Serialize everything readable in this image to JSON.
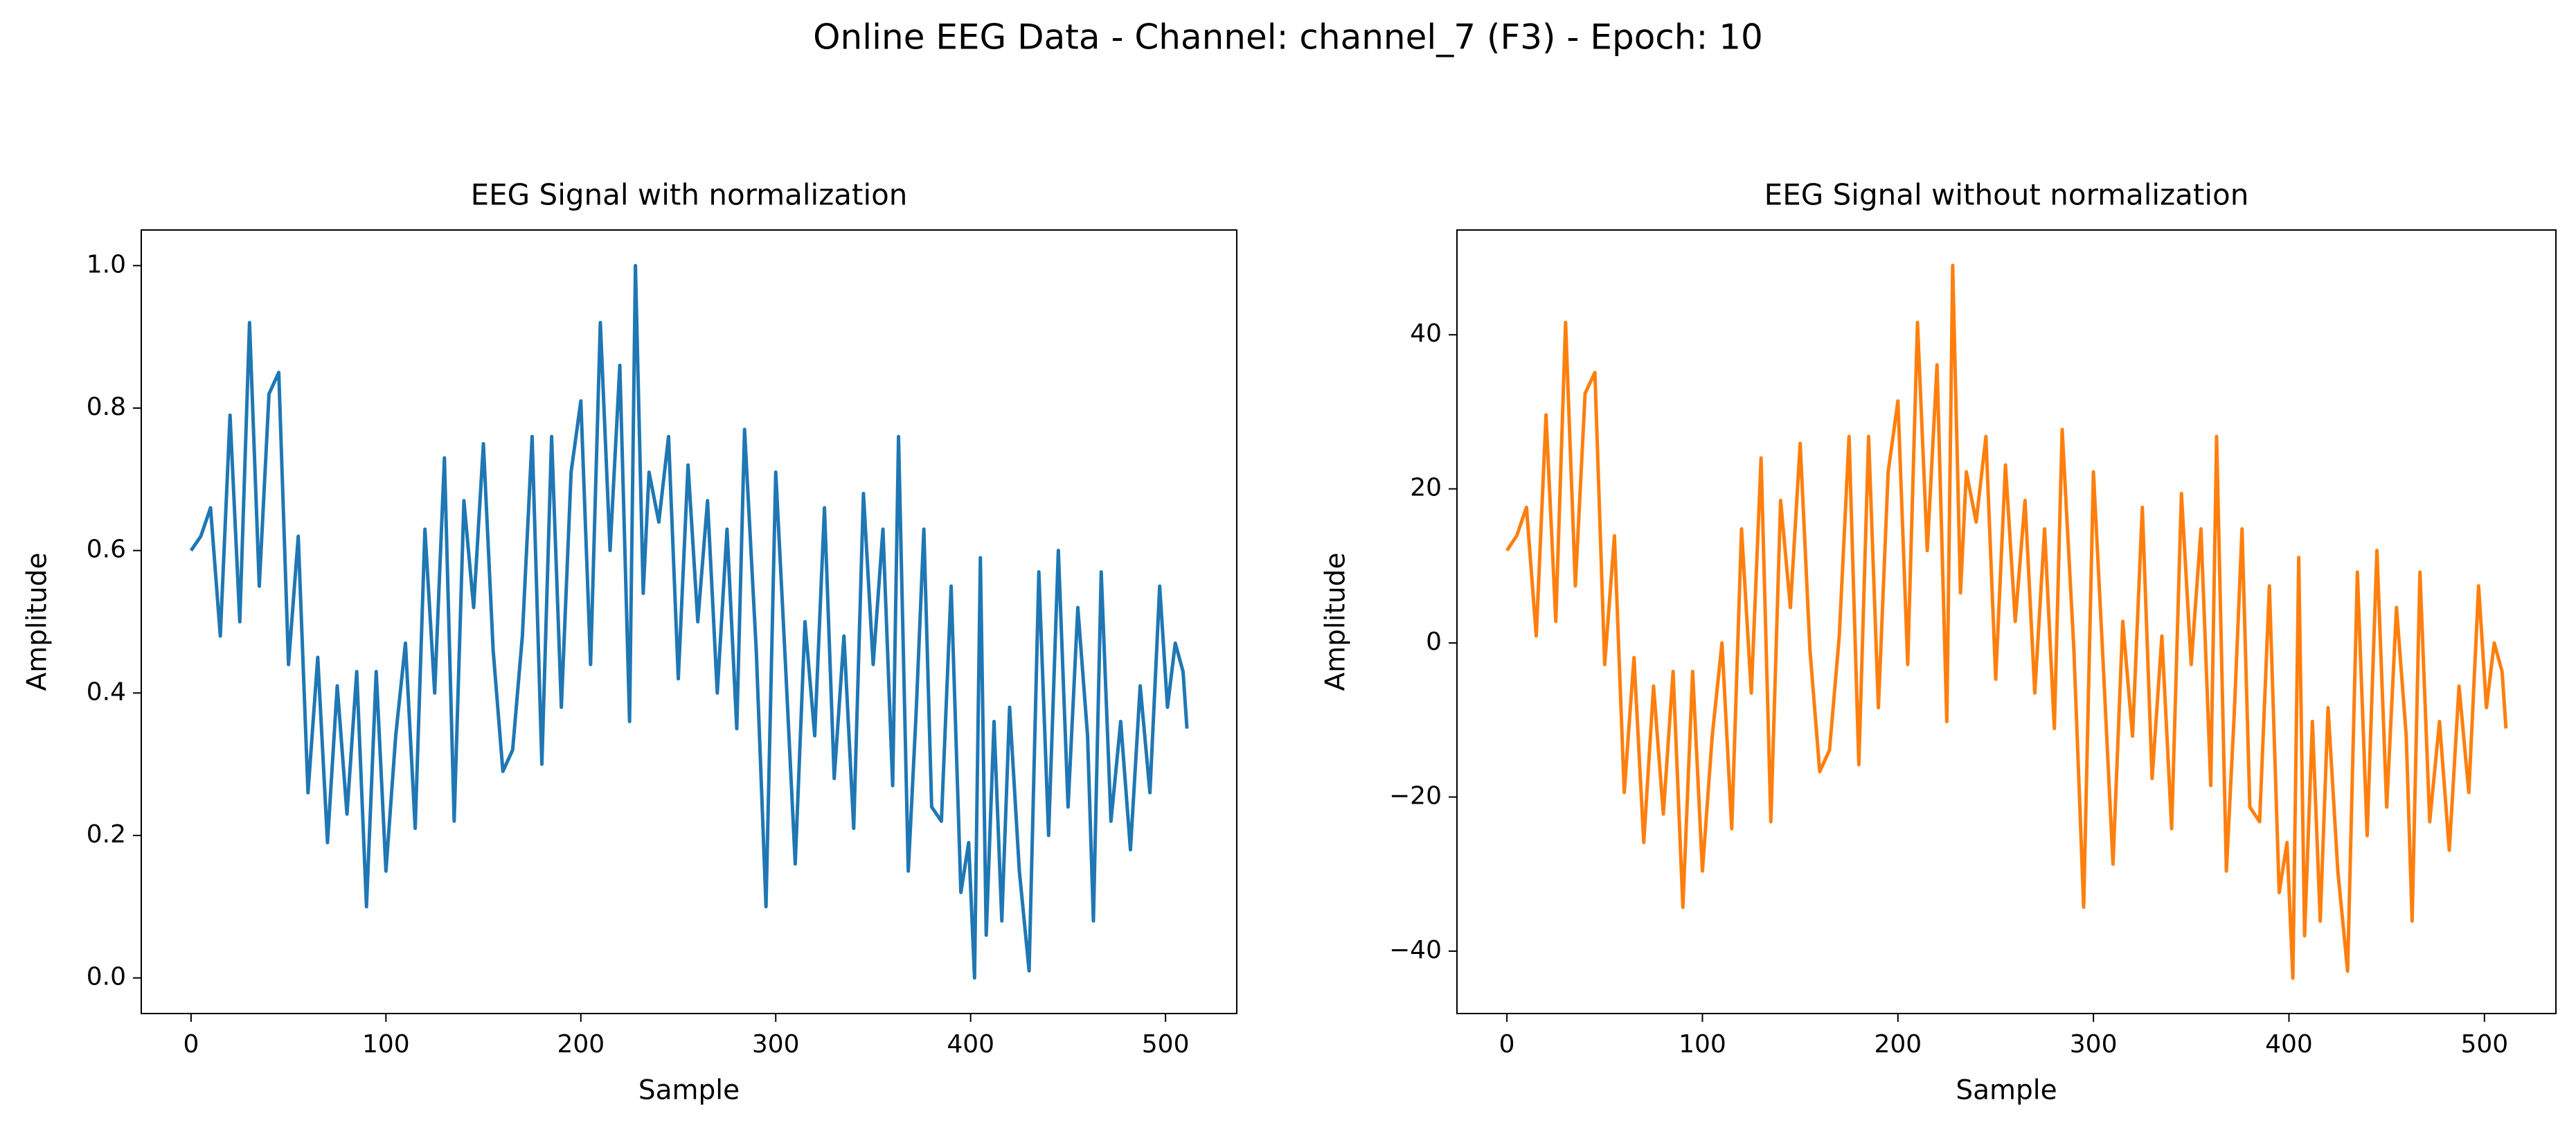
{
  "title": "Online EEG Data - Channel: channel_7 (F3) - Epoch: 10",
  "chart_data": [
    {
      "type": "line",
      "title": "EEG Signal with normalization",
      "xlabel": "Sample",
      "ylabel": "Amplitude",
      "xlim": [
        -25.55,
        536.55
      ],
      "ylim": [
        -0.05,
        1.05
      ],
      "xticks": [
        0,
        100,
        200,
        300,
        400,
        500
      ],
      "yticks": [
        {
          "value": 0,
          "label": "0.0"
        },
        0.2,
        0.4,
        0.6,
        0.8,
        {
          "value": 1,
          "label": "1.0"
        }
      ],
      "x": [
        0,
        5,
        10,
        15,
        20,
        25,
        30,
        35,
        40,
        45,
        50,
        55,
        60,
        65,
        70,
        75,
        80,
        85,
        90,
        95,
        100,
        105,
        110,
        115,
        120,
        125,
        130,
        135,
        140,
        145,
        150,
        155,
        160,
        165,
        170,
        175,
        180,
        185,
        190,
        195,
        200,
        205,
        210,
        215,
        220,
        225,
        228,
        232,
        235,
        240,
        245,
        250,
        255,
        260,
        265,
        270,
        275,
        280,
        284,
        290,
        295,
        300,
        305,
        310,
        315,
        320,
        325,
        330,
        335,
        340,
        345,
        350,
        355,
        360,
        363,
        368,
        372,
        376,
        380,
        385,
        390,
        395,
        399,
        402,
        405,
        408,
        412,
        416,
        420,
        425,
        430,
        435,
        440,
        445,
        450,
        455,
        460,
        463,
        467,
        472,
        477,
        482,
        487,
        492,
        497,
        501,
        505,
        509,
        511
      ],
      "series": [
        {
          "color": "#1f77b4",
          "values": [
            0.6,
            0.62,
            0.66,
            0.48,
            0.79,
            0.5,
            0.92,
            0.55,
            0.82,
            0.85,
            0.44,
            0.62,
            0.26,
            0.45,
            0.19,
            0.41,
            0.23,
            0.43,
            0.1,
            0.43,
            0.15,
            0.34,
            0.47,
            0.21,
            0.63,
            0.4,
            0.73,
            0.22,
            0.67,
            0.52,
            0.75,
            0.46,
            0.29,
            0.32,
            0.48,
            0.76,
            0.3,
            0.76,
            0.38,
            0.71,
            0.81,
            0.44,
            0.92,
            0.6,
            0.86,
            0.36,
            1.0,
            0.54,
            0.71,
            0.64,
            0.76,
            0.42,
            0.72,
            0.5,
            0.67,
            0.4,
            0.63,
            0.35,
            0.77,
            0.46,
            0.1,
            0.71,
            0.44,
            0.16,
            0.5,
            0.34,
            0.66,
            0.28,
            0.48,
            0.21,
            0.68,
            0.44,
            0.63,
            0.27,
            0.76,
            0.15,
            0.37,
            0.63,
            0.24,
            0.22,
            0.55,
            0.12,
            0.19,
            0.0,
            0.59,
            0.06,
            0.36,
            0.08,
            0.38,
            0.15,
            0.01,
            0.57,
            0.2,
            0.6,
            0.24,
            0.52,
            0.34,
            0.08,
            0.57,
            0.22,
            0.36,
            0.18,
            0.41,
            0.26,
            0.55,
            0.38,
            0.47,
            0.43,
            0.35
          ]
        }
      ]
    },
    {
      "type": "line",
      "title": "EEG Signal without normalization",
      "xlabel": "Sample",
      "ylabel": "Amplitude",
      "xlim": [
        -25.55,
        536.55
      ],
      "ylim": [
        -48.1,
        53.6
      ],
      "xticks": [
        0,
        100,
        200,
        300,
        400,
        500
      ],
      "yticks": [
        {
          "value": -40,
          "label": "−40"
        },
        {
          "value": -20,
          "label": "−20"
        },
        0,
        20,
        40
      ],
      "x": [
        0,
        5,
        10,
        15,
        20,
        25,
        30,
        35,
        40,
        45,
        50,
        55,
        60,
        65,
        70,
        75,
        80,
        85,
        90,
        95,
        100,
        105,
        110,
        115,
        120,
        125,
        130,
        135,
        140,
        145,
        150,
        155,
        160,
        165,
        170,
        175,
        180,
        185,
        190,
        195,
        200,
        205,
        210,
        215,
        220,
        225,
        228,
        232,
        235,
        240,
        245,
        250,
        255,
        260,
        265,
        270,
        275,
        280,
        284,
        290,
        295,
        300,
        305,
        310,
        315,
        320,
        325,
        330,
        335,
        340,
        345,
        350,
        355,
        360,
        363,
        368,
        372,
        376,
        380,
        385,
        390,
        395,
        399,
        402,
        405,
        408,
        412,
        416,
        420,
        425,
        430,
        435,
        440,
        445,
        450,
        455,
        460,
        463,
        467,
        472,
        477,
        482,
        487,
        492,
        497,
        501,
        505,
        509,
        511
      ],
      "series": [
        {
          "color": "#ff7f0e",
          "values": [
            12.0,
            13.9,
            17.6,
            0.9,
            29.6,
            2.8,
            41.6,
            7.4,
            32.4,
            35.1,
            -2.8,
            13.9,
            -19.4,
            -1.9,
            -25.9,
            -5.6,
            -22.2,
            -3.7,
            -34.3,
            -3.7,
            -29.6,
            -12.1,
            0.0,
            -24.1,
            14.8,
            -6.5,
            24.0,
            -23.2,
            18.5,
            4.6,
            25.9,
            -0.9,
            -16.7,
            -13.9,
            0.9,
            26.8,
            -15.8,
            26.8,
            -8.4,
            22.2,
            31.4,
            -2.8,
            41.6,
            12.0,
            36.1,
            -10.2,
            49.0,
            6.5,
            22.2,
            15.7,
            26.8,
            -4.7,
            23.1,
            2.8,
            18.5,
            -6.5,
            14.8,
            -11.1,
            27.7,
            -0.9,
            -34.3,
            22.2,
            -2.8,
            -28.7,
            2.8,
            -12.1,
            17.6,
            -17.6,
            0.9,
            -24.1,
            19.4,
            -2.8,
            14.8,
            -18.5,
            26.8,
            -29.6,
            -9.3,
            14.8,
            -21.3,
            -23.2,
            7.4,
            -32.4,
            -25.9,
            -43.5,
            11.1,
            -38.0,
            -10.2,
            -36.1,
            -8.4,
            -29.6,
            -42.6,
            9.2,
            -25.0,
            12.0,
            -21.3,
            4.6,
            -12.1,
            -36.1,
            9.2,
            -23.2,
            -10.2,
            -26.9,
            -5.6,
            -19.4,
            7.4,
            -8.4,
            0.0,
            -3.7,
            -11.1
          ]
        }
      ]
    }
  ]
}
